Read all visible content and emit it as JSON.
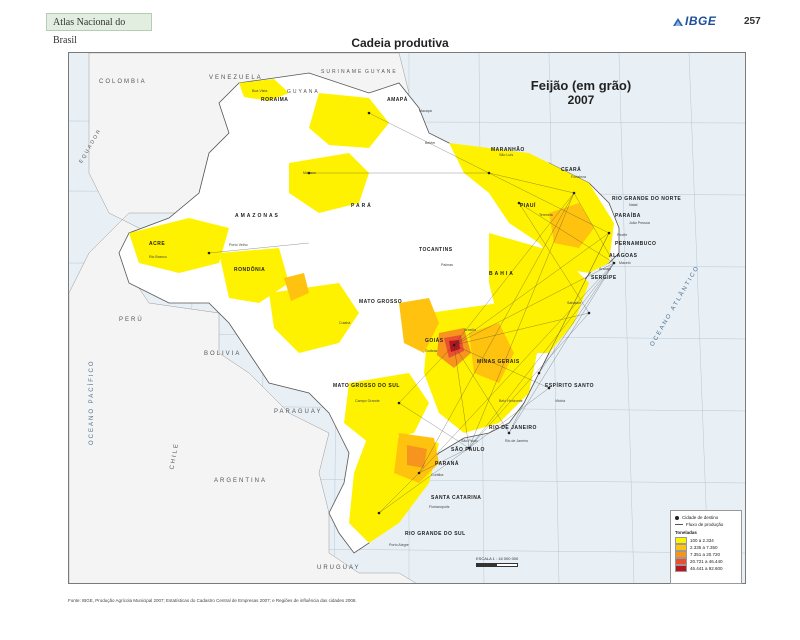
{
  "header": {
    "atlas_title": "Atlas Nacional do Brasil",
    "publisher": "IBGE",
    "page_number": "257",
    "section_title": "Cadeia produtiva"
  },
  "map": {
    "title": "Feijão (em grão)",
    "year": "2007",
    "countries": [
      "VENEZUELA",
      "COLOMBIA",
      "SURINAME",
      "GUYANE",
      "GUYANA",
      "EQUADOR",
      "PERÚ",
      "BOLIVIA",
      "PARAGUAY",
      "ARGENTINA",
      "CHILE",
      "URUGUAY"
    ],
    "oceans": [
      "OCEANO PACÍFICO",
      "OCEANO ATLÂNTICO"
    ],
    "states": [
      "RORAIMA",
      "AMAPÁ",
      "AMAZONAS",
      "PARÁ",
      "MARANHÃO",
      "CEARÁ",
      "PIAUÍ",
      "RIO GRANDE DO NORTE",
      "PARAÍBA",
      "PERNAMBUCO",
      "ALAGOAS",
      "SERGIPE",
      "BAHIA",
      "TOCANTINS",
      "ACRE",
      "RONDÔNIA",
      "MATO GROSSO",
      "GOIÁS",
      "MINAS GERAIS",
      "ESPÍRITO SANTO",
      "MATO GROSSO DO SUL",
      "SÃO PAULO",
      "RIO DE JANEIRO",
      "PARANÁ",
      "SANTA CATARINA",
      "RIO GRANDE DO SUL"
    ],
    "cities": [
      "Boa Vista",
      "Macapá",
      "Belém",
      "São Luís",
      "Fortaleza",
      "Natal",
      "João Pessoa",
      "Recife",
      "Maceió",
      "Aracaju",
      "Salvador",
      "Palmas",
      "Rio Branco",
      "Porto Velho",
      "Cuiabá",
      "Goiânia",
      "Brasília",
      "Belo Horizonte",
      "Vitória",
      "Campo Grande",
      "São Paulo",
      "Rio de Janeiro",
      "Curitiba",
      "Florianópolis",
      "Porto Alegre",
      "Manaus",
      "Teresina"
    ]
  },
  "legend": {
    "destination": "Cidade de destino",
    "flow": "Fluxo de produção",
    "tonnage_header": "Toneladas",
    "classes": [
      {
        "label": "100 a 2.334",
        "color": "#fff200"
      },
      {
        "label": "2.335 a 7.350",
        "color": "#ffc20e"
      },
      {
        "label": "7.351 a 20.720",
        "color": "#f7941d"
      },
      {
        "label": "20.721 a 46.440",
        "color": "#e8502f"
      },
      {
        "label": "46.441 a 92.600",
        "color": "#b7151f"
      }
    ]
  },
  "scale_text": "ESCALA 1 : 16 000 000",
  "source_text": "Fonte: IBGE, Produção Agrícola Municipal 2007; Estatísticas do Cadastro Central de Empresas 2007; e Regiões de influência das cidades 2008."
}
